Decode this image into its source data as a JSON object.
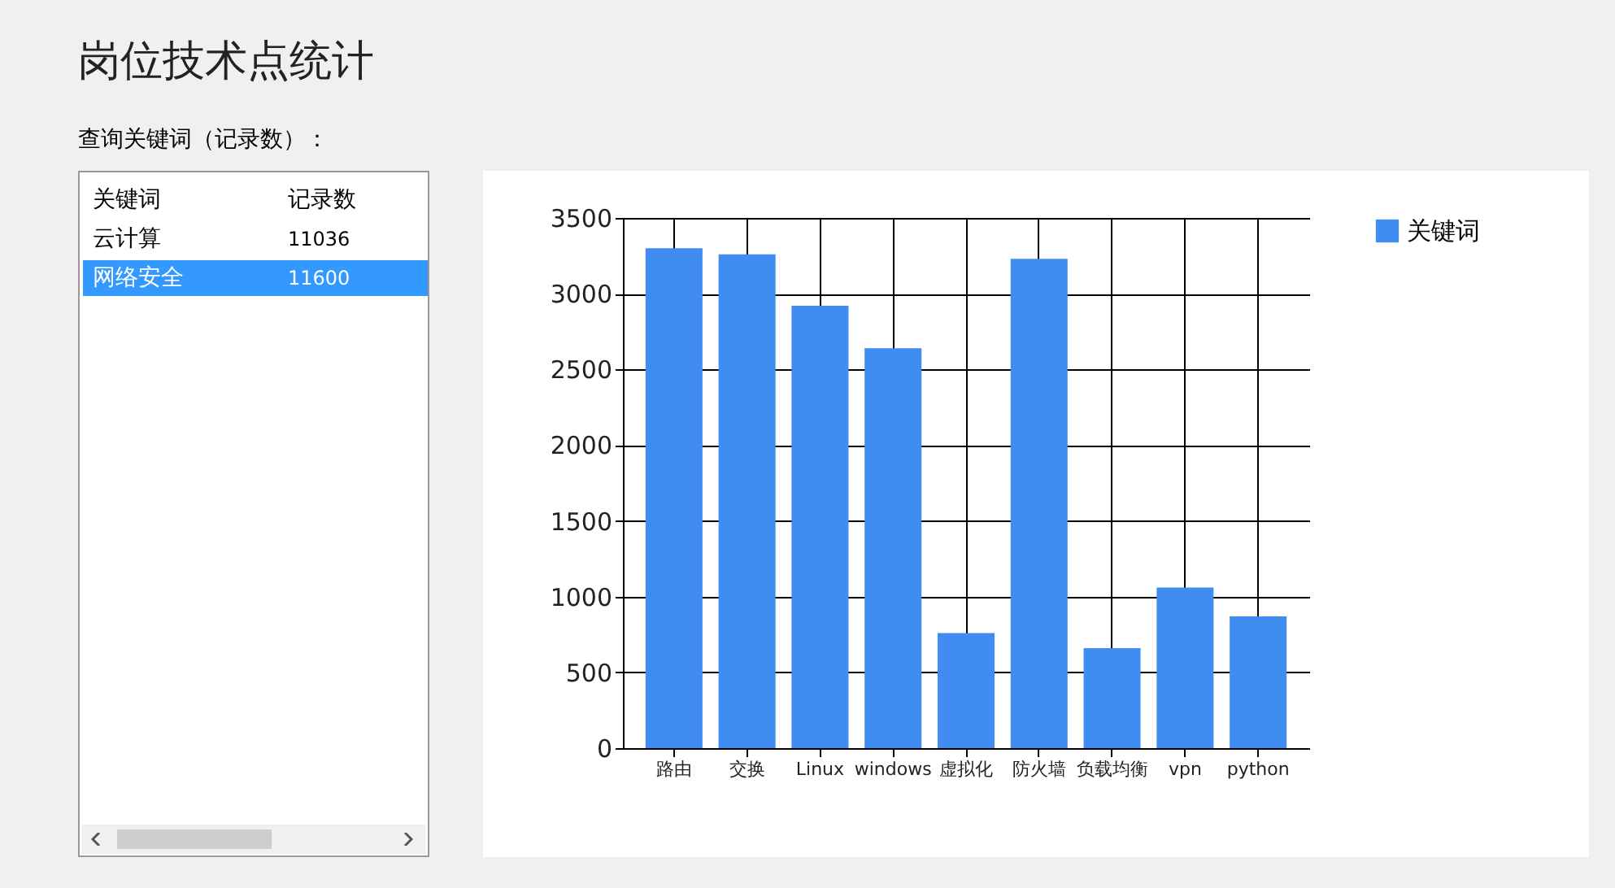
{
  "chart_data": {
    "type": "bar",
    "title": "岗位技术点统计",
    "annotations": [
      "查询关键词（记录数）：",
      "关键词",
      "记录数",
      "云计算",
      "11036",
      "网络安全",
      "11600"
    ],
    "categories": [
      "路由",
      "交换",
      "Linux",
      "windows",
      "虚拟化",
      "防火墙",
      "负载均衡",
      "vpn",
      "python"
    ],
    "series": [
      {
        "name": "关键词",
        "color": "#418cf0",
        "values": [
          3300,
          3260,
          2920,
          2640,
          760,
          3230,
          660,
          1060,
          870
        ]
      }
    ],
    "ylim": [
      0,
      3500
    ],
    "yticks": [
      0,
      500,
      1000,
      1500,
      2000,
      2500,
      3000,
      3500
    ],
    "grid": true,
    "legend": "top right"
  }
}
